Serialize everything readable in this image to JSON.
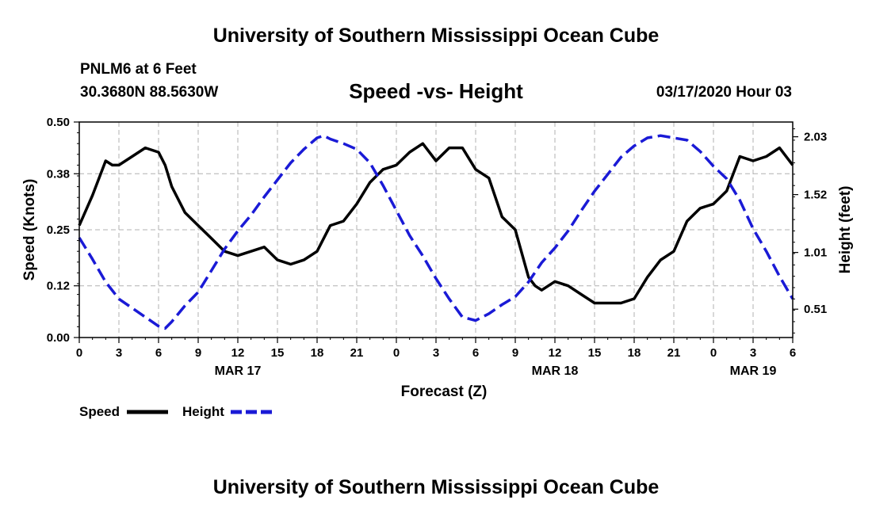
{
  "header": {
    "title": "University of Southern Mississippi Ocean Cube",
    "station": "PNLM6 at 6 Feet",
    "coords": "30.3680N 88.5630W",
    "datetime": "03/17/2020 Hour 03"
  },
  "footer": {
    "title": "University of Southern Mississippi Ocean Cube"
  },
  "colors": {
    "speed": "#000000",
    "height": "#1a1ad6",
    "grid": "#b0b0b0"
  },
  "chart_data": {
    "type": "line",
    "title": "Speed -vs- Height",
    "xlabel": "Forecast (Z)",
    "ylabel": "Speed (Knots)",
    "y2label": "Height (feet)",
    "x_range": [
      0,
      54
    ],
    "ylim": [
      0,
      0.5
    ],
    "y2lim": [
      0.26,
      2.16
    ],
    "x_ticks": [
      0,
      3,
      6,
      9,
      12,
      15,
      18,
      21,
      24,
      27,
      30,
      33,
      36,
      39,
      42,
      45,
      48,
      51,
      54
    ],
    "x_tick_labels": [
      "0",
      "3",
      "6",
      "9",
      "12",
      "15",
      "18",
      "21",
      "0",
      "3",
      "6",
      "9",
      "12",
      "15",
      "18",
      "21",
      "0",
      "3",
      "6"
    ],
    "date_labels": [
      {
        "x": 12,
        "label": "MAR 17"
      },
      {
        "x": 36,
        "label": "MAR 18"
      },
      {
        "x": 51,
        "label": "MAR 19"
      }
    ],
    "y_ticks": [
      0.0,
      0.12,
      0.25,
      0.38,
      0.5
    ],
    "y_tick_labels": [
      "0.00",
      "0.12",
      "0.25",
      "0.38",
      "0.50"
    ],
    "y2_ticks": [
      0.51,
      1.01,
      1.52,
      2.03
    ],
    "y2_tick_labels": [
      "0.51",
      "1.01",
      "1.52",
      "2.03"
    ],
    "grid": true,
    "legend": {
      "position": "bottom-left",
      "entries": [
        "Speed",
        "Height"
      ]
    },
    "series": [
      {
        "name": "Speed",
        "axis": "left",
        "style": "solid",
        "x": [
          0,
          1,
          2,
          2.5,
          3,
          4,
          5,
          6,
          6.5,
          7,
          8,
          9,
          10,
          11,
          12,
          13,
          14,
          15,
          16,
          17,
          18,
          19,
          20,
          21,
          22,
          23,
          24,
          25,
          26,
          27,
          28,
          29,
          30,
          31,
          32,
          33,
          34,
          34.5,
          35,
          36,
          37,
          38,
          39,
          40,
          41,
          42,
          43,
          44,
          45,
          46,
          47,
          48,
          49,
          50,
          51,
          52,
          53,
          54
        ],
        "values": [
          0.26,
          0.33,
          0.41,
          0.4,
          0.4,
          0.42,
          0.44,
          0.43,
          0.4,
          0.35,
          0.29,
          0.26,
          0.23,
          0.2,
          0.19,
          0.2,
          0.21,
          0.18,
          0.17,
          0.18,
          0.2,
          0.26,
          0.27,
          0.31,
          0.36,
          0.39,
          0.4,
          0.43,
          0.45,
          0.41,
          0.44,
          0.44,
          0.39,
          0.37,
          0.28,
          0.25,
          0.14,
          0.12,
          0.11,
          0.13,
          0.12,
          0.1,
          0.08,
          0.08,
          0.08,
          0.09,
          0.14,
          0.18,
          0.2,
          0.27,
          0.3,
          0.31,
          0.34,
          0.42,
          0.41,
          0.42,
          0.44,
          0.4
        ]
      },
      {
        "name": "Height",
        "axis": "right",
        "style": "dashed",
        "x": [
          0,
          1,
          2,
          3,
          4,
          5,
          6,
          6.5,
          7,
          8,
          9,
          10,
          11,
          12,
          13,
          14,
          15,
          16,
          17,
          18,
          18.5,
          19,
          20,
          21,
          22,
          23,
          24,
          25,
          26,
          27,
          28,
          29,
          30,
          31,
          32,
          33,
          34,
          35,
          36,
          37,
          38,
          39,
          40,
          41,
          42,
          43,
          44,
          45,
          46,
          47,
          48,
          49,
          50,
          51,
          52,
          53,
          54
        ],
        "values": [
          1.14,
          0.95,
          0.75,
          0.6,
          0.52,
          0.44,
          0.36,
          0.34,
          0.4,
          0.54,
          0.66,
          0.85,
          1.04,
          1.2,
          1.34,
          1.5,
          1.65,
          1.8,
          1.92,
          2.02,
          2.04,
          2.01,
          1.97,
          1.92,
          1.8,
          1.6,
          1.38,
          1.16,
          0.98,
          0.78,
          0.6,
          0.44,
          0.41,
          0.47,
          0.55,
          0.62,
          0.75,
          0.92,
          1.05,
          1.2,
          1.38,
          1.55,
          1.7,
          1.85,
          1.95,
          2.02,
          2.04,
          2.02,
          2.0,
          1.9,
          1.77,
          1.66,
          1.47,
          1.22,
          1.02,
          0.8,
          0.6
        ]
      }
    ]
  }
}
